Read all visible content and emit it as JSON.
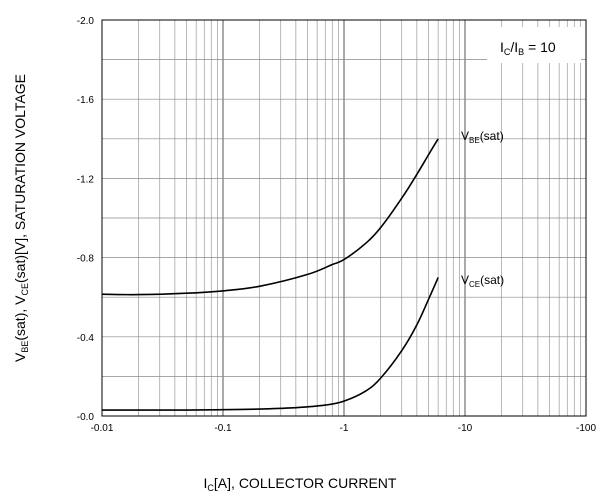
{
  "chart_data": {
    "type": "line",
    "xscale": "log",
    "xlim": [
      -0.01,
      -100
    ],
    "ylim": [
      0.0,
      -2.0
    ],
    "grid": true,
    "xlabel": {
      "main": "I",
      "sub": "C",
      "rest": "[A], COLLECTOR CURRENT"
    },
    "ylabel": {
      "p1": "V",
      "s1": "BE",
      "p2": "(sat), V",
      "s2": "CE",
      "p3": "(sat)[V], SATURATION VOLTAGE"
    },
    "condition": {
      "p1": "I",
      "s1": "C",
      "p2": "/I",
      "s2": "B",
      "p3": " = 10"
    },
    "x_ticks": [
      {
        "value": -0.01,
        "label": "-0.01"
      },
      {
        "value": -0.1,
        "label": "-0.1"
      },
      {
        "value": -1,
        "label": "-1"
      },
      {
        "value": -10,
        "label": "-10"
      },
      {
        "value": -100,
        "label": "-100"
      }
    ],
    "y_ticks": [
      {
        "value": 0.0,
        "label": "-0.0"
      },
      {
        "value": -0.4,
        "label": "-0.4"
      },
      {
        "value": -0.8,
        "label": "-0.8"
      },
      {
        "value": -1.2,
        "label": "-1.2"
      },
      {
        "value": -1.6,
        "label": "-1.6"
      },
      {
        "value": -2.0,
        "label": "-2.0"
      }
    ],
    "series": [
      {
        "label": {
          "p": "V",
          "s": "BE",
          "rest": "(sat)"
        },
        "x": [
          -0.01,
          -0.02,
          -0.05,
          -0.1,
          -0.2,
          -0.5,
          -0.8,
          -1.0,
          -1.5,
          -2,
          -3,
          -4,
          -5,
          -6
        ],
        "y": [
          -0.615,
          -0.613,
          -0.62,
          -0.632,
          -0.655,
          -0.715,
          -0.765,
          -0.79,
          -0.87,
          -0.95,
          -1.1,
          -1.22,
          -1.32,
          -1.4
        ]
      },
      {
        "label": {
          "p": "V",
          "s": "CE",
          "rest": "(sat)"
        },
        "x": [
          -0.01,
          -0.05,
          -0.1,
          -0.2,
          -0.4,
          -0.7,
          -1.0,
          -1.5,
          -2,
          -3,
          -4,
          -5,
          -6
        ],
        "y": [
          -0.03,
          -0.03,
          -0.032,
          -0.035,
          -0.042,
          -0.055,
          -0.075,
          -0.125,
          -0.19,
          -0.33,
          -0.46,
          -0.59,
          -0.7
        ]
      }
    ]
  }
}
